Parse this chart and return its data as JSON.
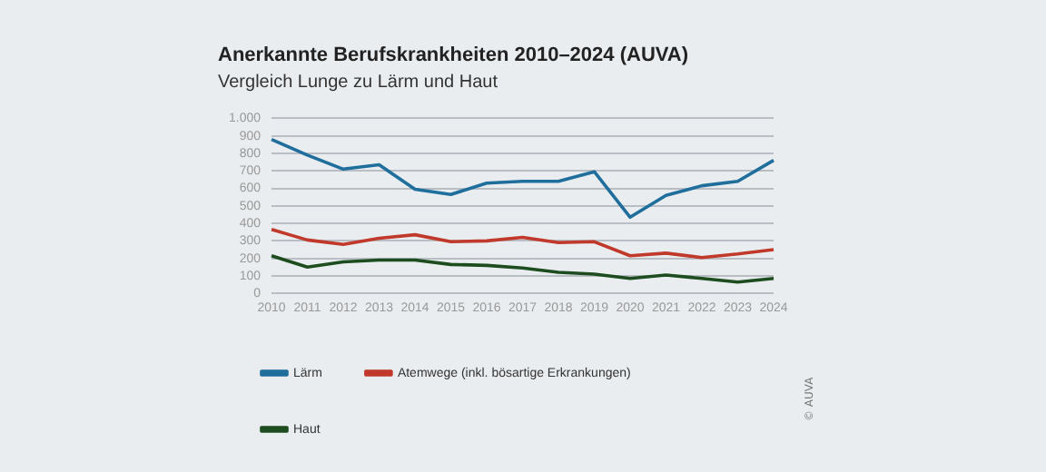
{
  "chart_data": {
    "type": "line",
    "title": "Anerkannte Berufskrankheiten 2010–2024 (AUVA)",
    "subtitle": "Vergleich Lunge zu Lärm und Haut",
    "categories": [
      "2010",
      "2011",
      "2012",
      "2013",
      "2014",
      "2015",
      "2016",
      "2017",
      "2018",
      "2019",
      "2020",
      "2021",
      "2022",
      "2023",
      "2024"
    ],
    "series": [
      {
        "name": "Lärm",
        "color": "#1f6e9c",
        "values": [
          880,
          790,
          710,
          735,
          595,
          565,
          630,
          640,
          640,
          695,
          435,
          560,
          615,
          640,
          760
        ]
      },
      {
        "name": "Atemwege (inkl. bösartige Erkrankungen)",
        "color": "#c0392b",
        "values": [
          365,
          305,
          280,
          315,
          335,
          295,
          300,
          320,
          290,
          295,
          215,
          230,
          205,
          225,
          250
        ]
      },
      {
        "name": "Haut",
        "color": "#1d4d1f",
        "values": [
          215,
          150,
          180,
          190,
          190,
          165,
          160,
          145,
          120,
          110,
          85,
          105,
          85,
          65,
          85
        ]
      }
    ],
    "ylim": [
      0,
      1000
    ],
    "yticks": [
      0,
      100,
      200,
      300,
      400,
      500,
      600,
      700,
      800,
      900,
      {
        "value": 1000,
        "label": "1.000"
      }
    ],
    "grid": "y",
    "legend": "bottom left",
    "marker": "none",
    "line_style": "solid",
    "annotations": [
      "© AUVA"
    ]
  }
}
